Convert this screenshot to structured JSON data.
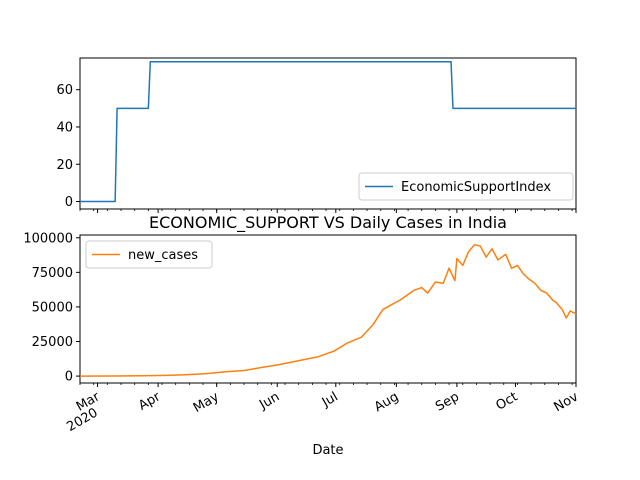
{
  "chart_data": [
    {
      "type": "line",
      "title": "",
      "xlabel": "",
      "ylabel": "",
      "x_range": [
        "2020-02-21",
        "2020-11-01"
      ],
      "ylim": [
        -4,
        77
      ],
      "yticks": [
        0,
        20,
        40,
        60
      ],
      "x_tick_labels_visible": false,
      "legend": {
        "placement": "lower-right"
      },
      "series": [
        {
          "name": "EconomicSupportIndex",
          "color": "#1f77b4",
          "x": [
            "2020-02-21",
            "2020-03-10",
            "2020-03-11",
            "2020-03-27",
            "2020-03-28",
            "2020-08-29",
            "2020-08-30",
            "2020-11-01"
          ],
          "values": [
            0,
            0,
            50,
            50,
            75,
            75,
            50,
            50
          ]
        }
      ]
    },
    {
      "type": "line",
      "title": "ECONOMIC_SUPPORT VS Daily Cases in India",
      "xlabel": "Date",
      "ylabel": "",
      "x_range": [
        "2020-02-21",
        "2020-11-01"
      ],
      "ylim": [
        -5000,
        102000
      ],
      "yticks": [
        0,
        25000,
        50000,
        75000,
        100000
      ],
      "x_ticks": [
        {
          "date": "2020-03-01",
          "label": "Mar",
          "label2": "2020"
        },
        {
          "date": "2020-04-01",
          "label": "Apr"
        },
        {
          "date": "2020-05-01",
          "label": "May"
        },
        {
          "date": "2020-06-01",
          "label": "Jun"
        },
        {
          "date": "2020-07-01",
          "label": "Jul"
        },
        {
          "date": "2020-08-01",
          "label": "Aug"
        },
        {
          "date": "2020-09-01",
          "label": "Sep"
        },
        {
          "date": "2020-10-01",
          "label": "Oct"
        },
        {
          "date": "2020-11-01",
          "label": "Nov"
        }
      ],
      "legend": {
        "placement": "upper-left"
      },
      "series": [
        {
          "name": "new_cases",
          "color": "#ff7f0e",
          "x": [
            "2020-02-21",
            "2020-03-10",
            "2020-03-25",
            "2020-04-05",
            "2020-04-15",
            "2020-04-25",
            "2020-05-05",
            "2020-05-15",
            "2020-05-25",
            "2020-06-01",
            "2020-06-08",
            "2020-06-15",
            "2020-06-22",
            "2020-06-30",
            "2020-07-07",
            "2020-07-14",
            "2020-07-20",
            "2020-07-25",
            "2020-07-30",
            "2020-08-03",
            "2020-08-06",
            "2020-08-10",
            "2020-08-14",
            "2020-08-17",
            "2020-08-21",
            "2020-08-25",
            "2020-08-28",
            "2020-08-31",
            "2020-09-01",
            "2020-09-04",
            "2020-09-07",
            "2020-09-10",
            "2020-09-13",
            "2020-09-16",
            "2020-09-19",
            "2020-09-22",
            "2020-09-26",
            "2020-09-29",
            "2020-10-02",
            "2020-10-05",
            "2020-10-08",
            "2020-10-11",
            "2020-10-14",
            "2020-10-17",
            "2020-10-20",
            "2020-10-22",
            "2020-10-25",
            "2020-10-27",
            "2020-10-29",
            "2020-11-01"
          ],
          "values": [
            0,
            60,
            200,
            500,
            1000,
            1700,
            3000,
            4000,
            6500,
            8000,
            10000,
            12000,
            14000,
            18000,
            24000,
            28000,
            37000,
            48000,
            52000,
            55000,
            58000,
            62000,
            64000,
            60000,
            68000,
            67000,
            78000,
            69000,
            85000,
            80000,
            90000,
            95000,
            94000,
            86000,
            92000,
            84000,
            88000,
            78000,
            80000,
            74000,
            70000,
            67000,
            62000,
            60000,
            55000,
            53000,
            48000,
            42000,
            47000,
            45000
          ]
        }
      ]
    }
  ]
}
